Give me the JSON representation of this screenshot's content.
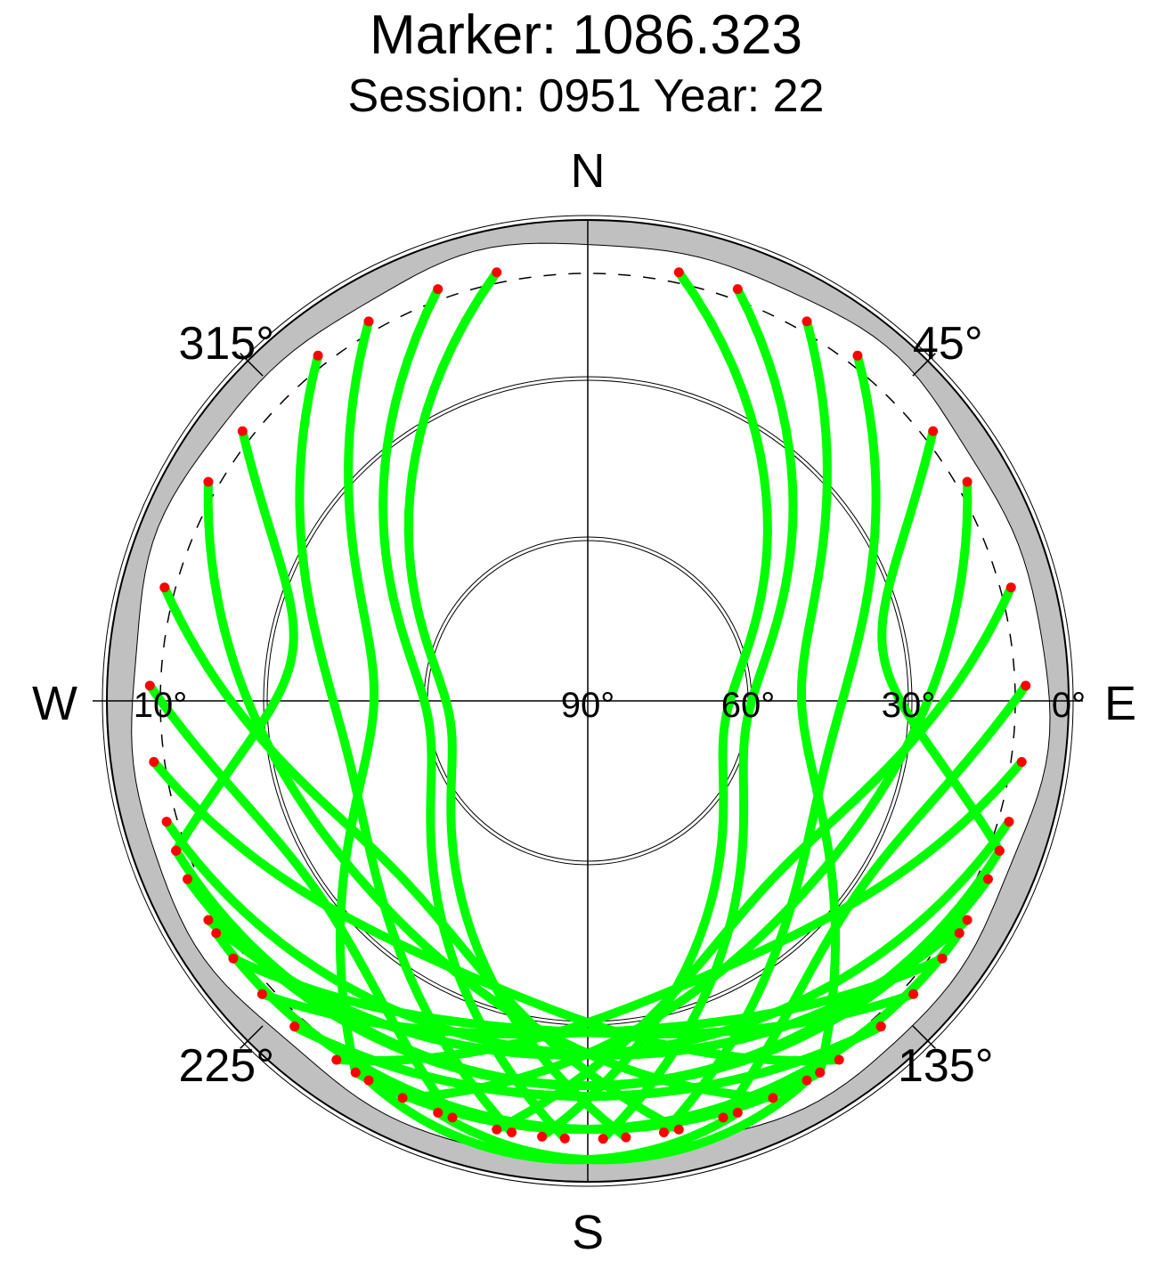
{
  "title": "Marker: 1086.323",
  "subtitle": "Session: 0951 Year: 22",
  "colors": {
    "track": "#00ff00",
    "endpoint": "#ff0000",
    "mask": "#c0c0c0",
    "axis": "#000000"
  },
  "chart_data": {
    "type": "scatter",
    "projection": "polar-skyplot",
    "cardinal_labels": {
      "north": "N",
      "east": "E",
      "south": "S",
      "west": "W"
    },
    "azimuth_labels": [
      {
        "azimuth": 45,
        "text": "45°"
      },
      {
        "azimuth": 135,
        "text": "135°"
      },
      {
        "azimuth": 225,
        "text": "225°"
      },
      {
        "azimuth": 315,
        "text": "315°"
      }
    ],
    "elevation_labels": [
      {
        "elevation": 10,
        "text": "10°",
        "side": "west"
      },
      {
        "elevation": 90,
        "text": "90°",
        "side": "east"
      },
      {
        "elevation": 60,
        "text": "60°",
        "side": "east"
      },
      {
        "elevation": 30,
        "text": "30°",
        "side": "east"
      },
      {
        "elevation": 0,
        "text": "0°",
        "side": "east"
      }
    ],
    "elevation_rings": [
      60,
      30
    ],
    "cutoff_elevation": 10,
    "elevation_range": [
      0,
      90
    ],
    "tracks": [
      {
        "az0": 348,
        "az1": 175,
        "minz": 26
      },
      {
        "az0": 340,
        "az1": 183,
        "minz": 30
      },
      {
        "az0": 322,
        "az1": 190,
        "minz": 46
      },
      {
        "az0": 300,
        "az1": 155,
        "minz": 54
      },
      {
        "az0": 285,
        "az1": 168,
        "minz": 48
      },
      {
        "az0": 272,
        "az1": 198,
        "minz": 62
      },
      {
        "az0": 262,
        "az1": 145,
        "minz": 56
      },
      {
        "az0": 254,
        "az1": 120,
        "minz": 66
      },
      {
        "az0": 246,
        "az1": 110,
        "minz": 72
      },
      {
        "az0": 234,
        "az1": 132,
        "minz": 62
      },
      {
        "az0": 222,
        "az1": 138,
        "minz": 74
      },
      {
        "az0": 212,
        "az1": 122,
        "minz": 80
      },
      {
        "az0": 200,
        "az1": 150,
        "minz": 86
      },
      {
        "az0": 12,
        "az1": 186,
        "minz": 26
      },
      {
        "az0": 20,
        "az1": 178,
        "minz": 30
      },
      {
        "az0": 38,
        "az1": 170,
        "minz": 46
      },
      {
        "az0": 60,
        "az1": 205,
        "minz": 54
      },
      {
        "az0": 75,
        "az1": 192,
        "minz": 48
      },
      {
        "az0": 88,
        "az1": 162,
        "minz": 62
      },
      {
        "az0": 98,
        "az1": 215,
        "minz": 56
      },
      {
        "az0": 106,
        "az1": 240,
        "minz": 66
      },
      {
        "az0": 114,
        "az1": 250,
        "minz": 72
      },
      {
        "az0": 126,
        "az1": 228,
        "minz": 62
      },
      {
        "az0": 138,
        "az1": 222,
        "minz": 74
      },
      {
        "az0": 148,
        "az1": 238,
        "minz": 80
      },
      {
        "az0": 160,
        "az1": 210,
        "minz": 86
      },
      {
        "az0": 330,
        "az1": 212,
        "minz": 40
      },
      {
        "az0": 30,
        "az1": 148,
        "minz": 40
      },
      {
        "az0": 308,
        "az1": 250,
        "minz": 56
      },
      {
        "az0": 52,
        "az1": 110,
        "minz": 56
      }
    ]
  }
}
